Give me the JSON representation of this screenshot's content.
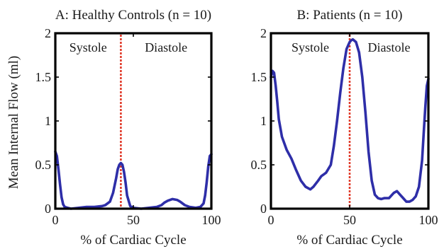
{
  "chart_data": {
    "type": "line",
    "ylabel": "Mean Internal Flow (ml)",
    "xlabel": "% of Cardiac Cycle",
    "panels": [
      {
        "title": "A: Healthy Controls (n = 10)",
        "xlim": [
          0,
          100
        ],
        "ylim": [
          0,
          2
        ],
        "xticks": [
          0,
          50,
          100
        ],
        "yticks": [
          0,
          0.5,
          1,
          1.5,
          2
        ],
        "xtick_labels": [
          "0",
          "50",
          "100"
        ],
        "ytick_labels": [
          "0",
          "0.5",
          "1",
          "1.5",
          "2"
        ],
        "regions": [
          "Systole",
          "Diastole"
        ],
        "marker_x": 42,
        "series": [
          {
            "color": "#2e2ea8",
            "x": [
              0,
              1,
              2,
              3,
              4,
              5,
              6,
              8,
              10,
              15,
              20,
              25,
              30,
              32,
              35,
              37,
              39,
              40,
              41,
              42,
              43,
              44,
              45,
              46,
              48,
              50,
              55,
              60,
              65,
              68,
              70,
              72,
              75,
              78,
              80,
              83,
              86,
              90,
              93,
              95,
              96,
              97,
              98,
              99,
              100
            ],
            "y": [
              0.65,
              0.6,
              0.45,
              0.28,
              0.13,
              0.05,
              0.02,
              0.01,
              0.0,
              0.01,
              0.02,
              0.02,
              0.03,
              0.04,
              0.08,
              0.18,
              0.35,
              0.45,
              0.5,
              0.52,
              0.5,
              0.42,
              0.3,
              0.15,
              0.03,
              0.01,
              0.0,
              0.01,
              0.02,
              0.04,
              0.07,
              0.09,
              0.11,
              0.1,
              0.08,
              0.04,
              0.02,
              0.01,
              0.02,
              0.06,
              0.15,
              0.3,
              0.48,
              0.6,
              0.62
            ]
          }
        ]
      },
      {
        "title": "B: Patients (n = 10)",
        "xlim": [
          0,
          100
        ],
        "ylim": [
          0,
          2
        ],
        "xticks": [
          0,
          50,
          100
        ],
        "yticks": [
          0,
          0.5,
          1,
          1.5,
          2
        ],
        "xtick_labels": [
          "0",
          "50",
          "100"
        ],
        "ytick_labels": [
          "0",
          "0.5",
          "1",
          "1.5",
          "2"
        ],
        "regions": [
          "Systole",
          "Diastole"
        ],
        "marker_x": 50,
        "series": [
          {
            "color": "#2e2ea8",
            "x": [
              0,
              1,
              2,
              3,
              4,
              5,
              7,
              10,
              13,
              16,
              19,
              22,
              25,
              27,
              30,
              32,
              35,
              38,
              40,
              42,
              44,
              46,
              48,
              50,
              51,
              52,
              54,
              56,
              58,
              60,
              62,
              64,
              66,
              68,
              70,
              72,
              75,
              78,
              80,
              82,
              84,
              86,
              88,
              90,
              92,
              94,
              96,
              97,
              98,
              99,
              100
            ],
            "y": [
              1.5,
              1.57,
              1.55,
              1.4,
              1.22,
              1.02,
              0.82,
              0.67,
              0.57,
              0.44,
              0.32,
              0.25,
              0.22,
              0.25,
              0.32,
              0.37,
              0.41,
              0.5,
              0.72,
              1.0,
              1.32,
              1.6,
              1.82,
              1.9,
              1.92,
              1.93,
              1.9,
              1.78,
              1.5,
              1.1,
              0.65,
              0.32,
              0.16,
              0.12,
              0.11,
              0.12,
              0.12,
              0.18,
              0.2,
              0.16,
              0.12,
              0.08,
              0.08,
              0.1,
              0.14,
              0.25,
              0.55,
              0.85,
              1.15,
              1.4,
              1.48
            ]
          }
        ]
      }
    ]
  }
}
